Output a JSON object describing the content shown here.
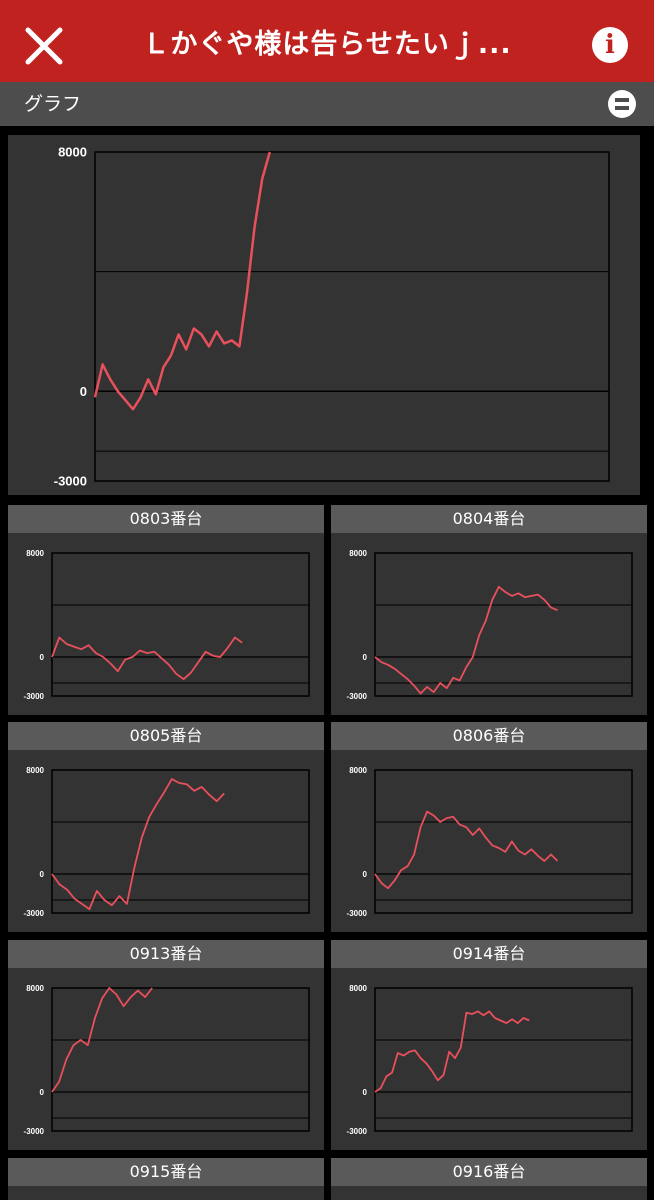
{
  "header": {
    "title": "Ｌかぐや様は告らせたいｊ...",
    "close_icon": "close-icon",
    "info_icon": "info-icon",
    "info_glyph": "i"
  },
  "section": {
    "title": "グラフ",
    "toggle_icon": "collapse-icon"
  },
  "colors": {
    "header_bg": "#c0221f",
    "line": "#e8505b",
    "panel_bg": "#333333",
    "card_header_bg": "#5a5a5a"
  },
  "chart_data": [
    {
      "type": "line",
      "title": "",
      "ylim": [
        -3000,
        8000
      ],
      "yticks": [
        "8000",
        "0",
        "-3000"
      ],
      "extra_gridlines": [
        4000,
        -2000
      ],
      "series": [
        {
          "values": [
            -200,
            900,
            400,
            0,
            -300,
            -600,
            -200,
            400,
            -100,
            800,
            1200,
            1900,
            1400,
            2100,
            1900,
            1500,
            2000,
            1600,
            1700,
            1500,
            3300,
            5500,
            7100,
            8000
          ]
        }
      ]
    },
    {
      "type": "line",
      "title": "0803番台",
      "ylim": [
        -3000,
        8000
      ],
      "yticks": [
        "8000",
        "0",
        "-3000"
      ],
      "extra_gridlines": [
        4000,
        -2000
      ],
      "series": [
        {
          "values": [
            0,
            1500,
            1000,
            800,
            600,
            900,
            300,
            0,
            -500,
            -1100,
            -200,
            0,
            500,
            300,
            400,
            -100,
            -600,
            -1300,
            -1700,
            -1200,
            -400,
            400,
            100,
            0,
            700,
            1500,
            1100
          ]
        }
      ]
    },
    {
      "type": "line",
      "title": "0804番台",
      "ylim": [
        -3000,
        8000
      ],
      "yticks": [
        "8000",
        "0",
        "-3000"
      ],
      "extra_gridlines": [
        4000,
        -2000
      ],
      "series": [
        {
          "values": [
            0,
            -400,
            -600,
            -900,
            -1300,
            -1700,
            -2200,
            -2800,
            -2300,
            -2700,
            -2000,
            -2400,
            -1600,
            -1800,
            -800,
            0,
            1700,
            2800,
            4400,
            5400,
            5000,
            4700,
            4900,
            4600,
            4700,
            4800,
            4400,
            3800,
            3600
          ]
        }
      ]
    },
    {
      "type": "line",
      "title": "0805番台",
      "ylim": [
        -3000,
        8000
      ],
      "yticks": [
        "8000",
        "0",
        "-3000"
      ],
      "extra_gridlines": [
        4000,
        -2000
      ],
      "series": [
        {
          "values": [
            0,
            -800,
            -1200,
            -1900,
            -2300,
            -2700,
            -1300,
            -2000,
            -2400,
            -1700,
            -2300,
            500,
            2800,
            4400,
            5400,
            6300,
            7300,
            7000,
            6900,
            6400,
            6700,
            6100,
            5600,
            6200
          ]
        }
      ]
    },
    {
      "type": "line",
      "title": "0806番台",
      "ylim": [
        -3000,
        8000
      ],
      "yticks": [
        "8000",
        "0",
        "-3000"
      ],
      "extra_gridlines": [
        4000,
        -2000
      ],
      "series": [
        {
          "values": [
            0,
            -700,
            -1100,
            -500,
            300,
            600,
            1500,
            3600,
            4800,
            4500,
            4000,
            4300,
            4400,
            3800,
            3600,
            3000,
            3500,
            2800,
            2200,
            2000,
            1700,
            2500,
            1800,
            1500,
            1900,
            1400,
            1000,
            1500,
            1000
          ]
        }
      ]
    },
    {
      "type": "line",
      "title": "0913番台",
      "ylim": [
        -3000,
        8000
      ],
      "yticks": [
        "8000",
        "0",
        "-3000"
      ],
      "extra_gridlines": [
        4000,
        -2000
      ],
      "series": [
        {
          "values": [
            0,
            800,
            2500,
            3600,
            4000,
            3600,
            5700,
            7200,
            8000,
            7500,
            6600,
            7300,
            7800,
            7300,
            8000
          ]
        }
      ]
    },
    {
      "type": "line",
      "title": "0914番台",
      "ylim": [
        -3000,
        8000
      ],
      "yticks": [
        "8000",
        "0",
        "-3000"
      ],
      "extra_gridlines": [
        4000,
        -2000
      ],
      "series": [
        {
          "values": [
            0,
            300,
            1200,
            1500,
            3000,
            2800,
            3100,
            3200,
            2600,
            2200,
            1600,
            900,
            1300,
            3100,
            2600,
            3400,
            6100,
            6000,
            6200,
            5900,
            6200,
            5700,
            5500,
            5300,
            5600,
            5300,
            5700,
            5500
          ]
        }
      ]
    }
  ],
  "stubs": [
    {
      "title": "0915番台"
    },
    {
      "title": "0916番台"
    }
  ]
}
